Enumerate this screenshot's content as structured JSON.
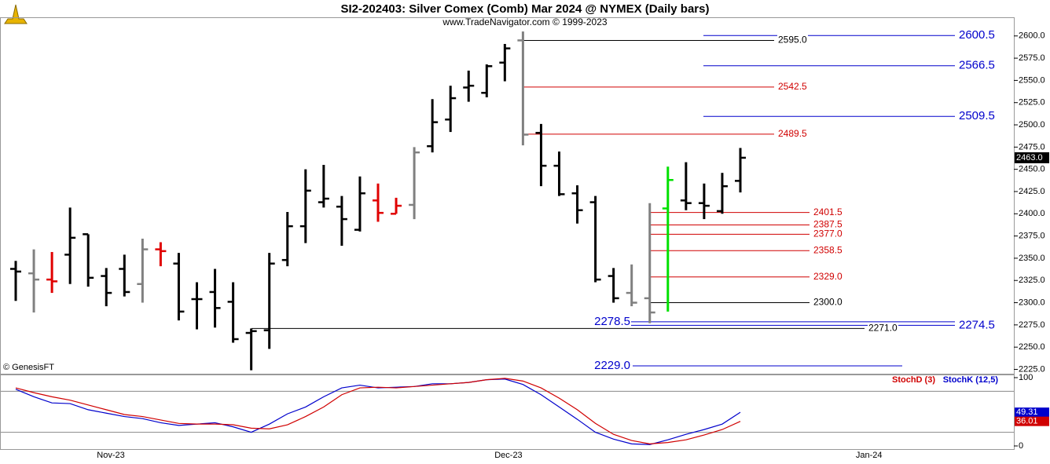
{
  "title": "SI2-202403:  Silver Comex (Comb) Mar 2024 @ NYMEX  (Daily bars)",
  "subtitle": "www.TradeNavigator.com © 1999-2023",
  "credit": "© GenesisFT",
  "chart_data": [
    {
      "type": "ohlc",
      "open": [
        2338,
        2333,
        2326,
        2354,
        2377,
        2330,
        2338,
        2321,
        2360,
        2344,
        2304,
        2312,
        2301,
        2266,
        2269,
        2348,
        2386,
        2413,
        2408,
        2382,
        2415,
        2400,
        2410,
        2476,
        2506,
        2542,
        2536,
        2570,
        2595,
        2491,
        2454,
        2423,
        2413,
        2330,
        2311,
        2305,
        2406,
        2415,
        2412,
        2403,
        2437
      ],
      "high": [
        2347,
        2360,
        2357,
        2407,
        2377,
        2339,
        2354,
        2372,
        2368,
        2356,
        2323,
        2338,
        2323,
        2271,
        2356,
        2402,
        2450,
        2455,
        2420,
        2442,
        2434,
        2418,
        2475,
        2529,
        2544,
        2561,
        2568,
        2591,
        2605,
        2501,
        2470,
        2432,
        2420,
        2339,
        2343,
        2412,
        2453,
        2458,
        2434,
        2446,
        2474
      ],
      "low": [
        2302,
        2289,
        2311,
        2321,
        2318,
        2296,
        2307,
        2300,
        2341,
        2280,
        2270,
        2272,
        2255,
        2224,
        2248,
        2341,
        2367,
        2407,
        2364,
        2380,
        2391,
        2400,
        2394,
        2469,
        2492,
        2526,
        2531,
        2549,
        2477,
        2431,
        2420,
        2389,
        2323,
        2300,
        2296,
        2277,
        2290,
        2404,
        2394,
        2400,
        2424
      ],
      "close": [
        2335,
        2326,
        2324,
        2373,
        2328,
        2311,
        2312,
        2360,
        2358,
        2290,
        2304,
        2294,
        2259,
        2268,
        2344,
        2386,
        2426,
        2417,
        2394,
        2423,
        2401,
        2409,
        2469,
        2503,
        2530,
        2544,
        2566,
        2586,
        2489,
        2454,
        2422,
        2404,
        2326,
        2305,
        2300,
        2289,
        2438,
        2412,
        2409,
        2431,
        2463
      ],
      "colors": [
        "#000000",
        "#808080",
        "#e00000",
        "#000000",
        "#000000",
        "#000000",
        "#000000",
        "#808080",
        "#e00000",
        "#000000",
        "#000000",
        "#000000",
        "#000000",
        "#000000",
        "#000000",
        "#000000",
        "#000000",
        "#000000",
        "#000000",
        "#000000",
        "#e00000",
        "#e00000",
        "#808080",
        "#000000",
        "#000000",
        "#000000",
        "#000000",
        "#000000",
        "#808080",
        "#000000",
        "#000000",
        "#000000",
        "#000000",
        "#000000",
        "#808080",
        "#808080",
        "#00e000",
        "#000000",
        "#000000",
        "#000000",
        "#000000"
      ],
      "ylim": [
        2221,
        2621
      ],
      "yticks": [
        {
          "value": 2225,
          "label": "2225.0"
        },
        {
          "value": 2250,
          "label": "2250.0"
        },
        {
          "value": 2275,
          "label": "2275.0"
        },
        {
          "value": 2300,
          "label": "2300.0"
        },
        {
          "value": 2325,
          "label": "2325.0"
        },
        {
          "value": 2350,
          "label": "2350.0"
        },
        {
          "value": 2375,
          "label": "2375.0"
        },
        {
          "value": 2400,
          "label": "2400.0"
        },
        {
          "value": 2425,
          "label": "2425.0"
        },
        {
          "value": 2450,
          "label": "2450.0"
        },
        {
          "value": 2475,
          "label": "2475.0"
        },
        {
          "value": 2500,
          "label": "2500.0"
        },
        {
          "value": 2525,
          "label": "2525.0"
        },
        {
          "value": 2550,
          "label": "2550.0"
        },
        {
          "value": 2575,
          "label": "2575.0"
        },
        {
          "value": 2600,
          "label": "2600.0"
        }
      ],
      "last_price": {
        "value": 2463,
        "label": "2463.0"
      },
      "levels": [
        {
          "value": 2600.5,
          "label": "2600.5",
          "color": "#0000cc"
        },
        {
          "value": 2595,
          "label": "2595.0",
          "color": "#000000"
        },
        {
          "value": 2566.5,
          "label": "2566.5",
          "color": "#0000cc"
        },
        {
          "value": 2542.5,
          "label": "2542.5",
          "color": "#d00000"
        },
        {
          "value": 2509.5,
          "label": "2509.5",
          "color": "#0000cc"
        },
        {
          "value": 2489.5,
          "label": "2489.5",
          "color": "#d00000"
        },
        {
          "value": 2401.5,
          "label": "2401.5",
          "color": "#d00000"
        },
        {
          "value": 2387.5,
          "label": "2387.5",
          "color": "#d00000"
        },
        {
          "value": 2377,
          "label": "2377.0",
          "color": "#d00000"
        },
        {
          "value": 2358.5,
          "label": "2358.5",
          "color": "#d00000"
        },
        {
          "value": 2329,
          "label": "2329.0",
          "color": "#d00000"
        },
        {
          "value": 2300,
          "label": "2300.0",
          "color": "#000000"
        },
        {
          "value": 2278.5,
          "label": "2278.5",
          "color": "#0000cc"
        },
        {
          "value": 2274.5,
          "label": "2274.5",
          "color": "#0000cc"
        },
        {
          "value": 2271,
          "label": "2271.0",
          "color": "#000000"
        },
        {
          "value": 2229,
          "label": "2229.0",
          "color": "#0000cc"
        }
      ],
      "x_labels": [
        "Nov-23",
        "Dec-23",
        "Jan-24"
      ]
    },
    {
      "type": "line",
      "ylim": [
        -4.6,
        104.6
      ],
      "yticks": [
        0,
        100
      ],
      "levels": [
        20,
        80
      ],
      "series": [
        {
          "name": "StochK (12,5)",
          "color": "#0000cc",
          "values": [
            83,
            72,
            63,
            62,
            53,
            48,
            43,
            40,
            34,
            30,
            32,
            34,
            28,
            20,
            32,
            47,
            57,
            72,
            85,
            89,
            85,
            86,
            87,
            91,
            91,
            93,
            97,
            98,
            90,
            75,
            57,
            39,
            20,
            10,
            3,
            2,
            9,
            17,
            24,
            32,
            49.31
          ]
        },
        {
          "name": "StochD (3)",
          "color": "#d00000",
          "values": [
            85,
            78,
            72,
            67,
            60,
            53,
            46,
            43,
            38,
            33,
            32,
            32,
            31,
            26,
            25,
            31,
            43,
            57,
            75,
            85,
            86,
            85,
            87,
            89,
            91,
            93,
            97,
            99,
            95,
            85,
            70,
            53,
            33,
            17,
            8,
            3,
            5,
            9,
            16,
            24,
            36.01
          ]
        }
      ]
    }
  ]
}
